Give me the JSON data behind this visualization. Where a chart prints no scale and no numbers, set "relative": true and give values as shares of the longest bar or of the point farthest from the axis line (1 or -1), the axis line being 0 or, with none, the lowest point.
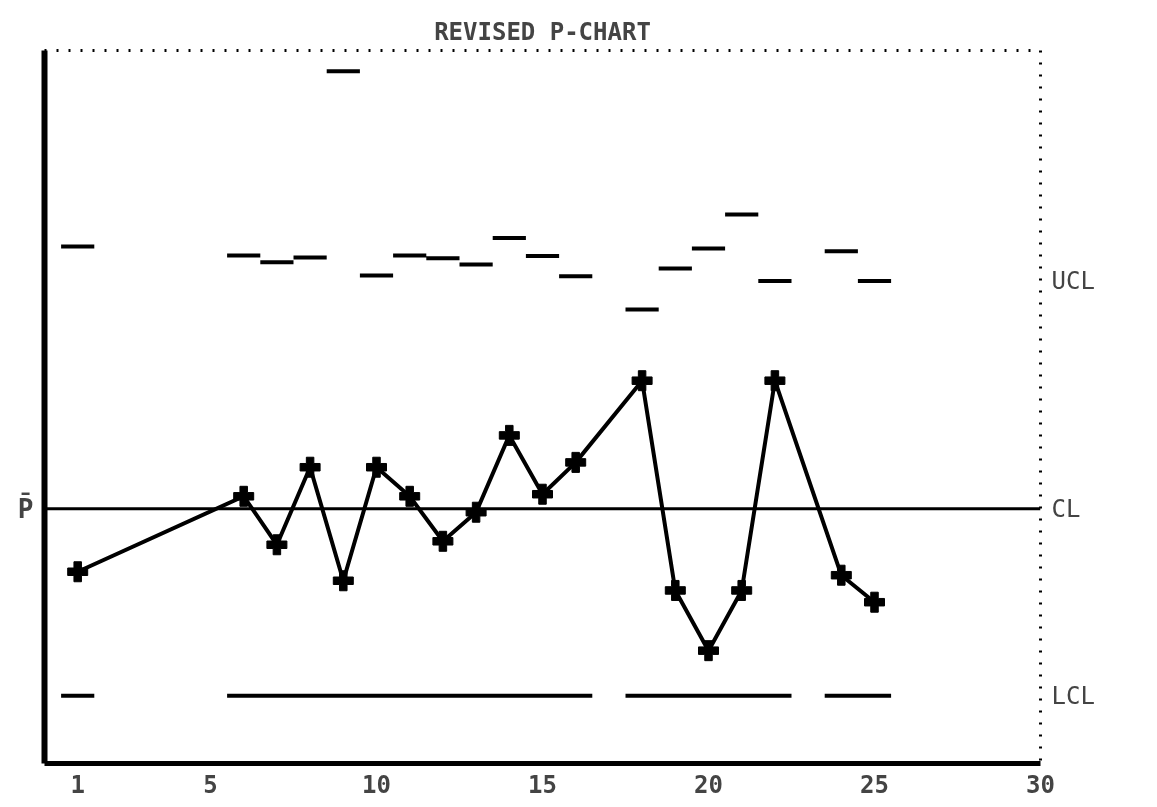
{
  "chart_data": {
    "type": "line",
    "title": "REVISED P-CHART",
    "relative": true,
    "marker": "cross",
    "line_style": "solid",
    "grid": false,
    "tick_labels": "x",
    "xlim": [
      0,
      30
    ],
    "xticks": [
      1,
      5,
      10,
      15,
      20,
      25,
      30
    ],
    "series": [
      {
        "color": "#000000",
        "x": [
          1,
          6,
          7,
          8,
          9,
          10,
          11,
          12,
          13,
          14,
          15,
          16,
          18,
          19,
          20,
          21,
          22,
          24,
          25
        ],
        "values": [
          0.277,
          0.386,
          0.316,
          0.428,
          0.264,
          0.428,
          0.386,
          0.321,
          0.363,
          0.474,
          0.389,
          0.435,
          0.553,
          0.25,
          0.163,
          0.25,
          0.553,
          0.272,
          0.233
        ]
      },
      {
        "name": "UCL",
        "color": "#000000",
        "marker": "none",
        "x": [
          0.5,
          1.5,
          null,
          5.5,
          6.5,
          null,
          6.5,
          7.5,
          null,
          7.5,
          8.5,
          null,
          8.5,
          9.5,
          null,
          9.5,
          10.5,
          null,
          10.5,
          11.5,
          null,
          11.5,
          12.5,
          null,
          12.5,
          13.5,
          null,
          13.5,
          14.5,
          null,
          14.5,
          15.5,
          null,
          15.5,
          16.5,
          null,
          17.5,
          18.5,
          null,
          18.5,
          19.5,
          null,
          19.5,
          20.5,
          null,
          20.5,
          21.5,
          null,
          21.5,
          22.5,
          null,
          23.5,
          24.5,
          null,
          24.5,
          25.5
        ],
        "values": [
          0.747,
          0.747,
          null,
          0.734,
          0.734,
          null,
          0.724,
          0.724,
          null,
          0.731,
          0.731,
          null,
          1,
          1,
          null,
          0.705,
          0.705,
          null,
          0.734,
          0.734,
          null,
          0.73,
          0.73,
          null,
          0.721,
          0.721,
          null,
          0.759,
          0.759,
          null,
          0.733,
          0.733,
          null,
          0.704,
          0.704,
          null,
          0.656,
          0.656,
          null,
          0.715,
          0.715,
          null,
          0.744,
          0.744,
          null,
          0.793,
          0.793,
          null,
          0.697,
          0.697,
          null,
          0.74,
          0.74,
          null,
          0.697,
          0.697
        ]
      },
      {
        "name": "LCL",
        "color": "#000000",
        "marker": "none",
        "x": [
          0.5,
          1.5,
          null,
          5.5,
          16.5,
          null,
          17.5,
          22.5,
          null,
          23.5,
          25.5
        ],
        "values": [
          0.098,
          0.098,
          null,
          0.098,
          0.098,
          null,
          0.098,
          0.098,
          null,
          0.098,
          0.098
        ]
      }
    ],
    "ref_lines": [
      {
        "axis": "y",
        "value": 0.368,
        "label": "CL",
        "color": "#000000"
      }
    ],
    "annotations": [
      "P̄"
    ]
  }
}
